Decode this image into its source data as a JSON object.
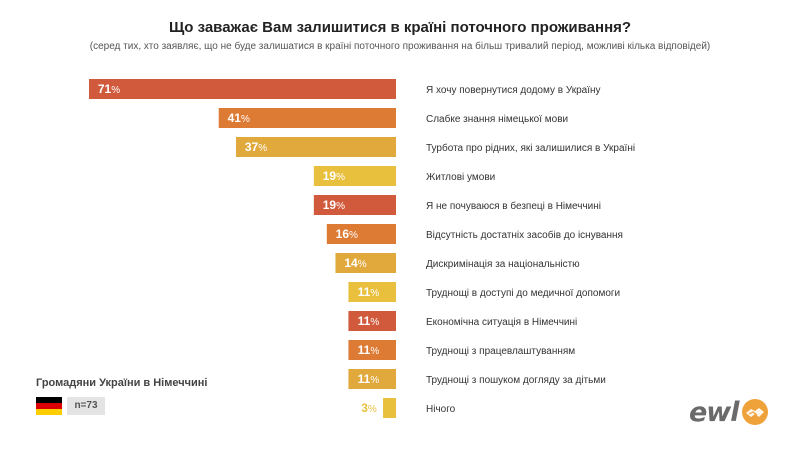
{
  "title": "Що заважає Вам залишитися в країні поточного проживання?",
  "subtitle": "(серед тих, хто заявляє, що не буде залишатися в країні поточного проживання на більш тривалий період, можливі кілька відповідей)",
  "chart_data": {
    "type": "bar",
    "orientation": "horizontal",
    "unit": "%",
    "categories": [
      "Я хочу повернутися додому в Україну",
      "Слабке знання німецької мови",
      "Турбота про рідних, які залишилися в Україні",
      "Житлові умови",
      "Я не почуваюся в безпеці в Німеччині",
      "Відсутність достатніх засобів до існування",
      "Дискримінація за національністю",
      "Труднощі в доступі до медичної допомоги",
      "Економічна ситуація в Німеччині",
      "Труднощі з працевлаштуванням",
      "Труднощі з пошуком догляду за дітьми",
      "Нічого"
    ],
    "values": [
      71,
      41,
      37,
      19,
      19,
      16,
      14,
      11,
      11,
      11,
      11,
      3
    ],
    "colors": [
      "#d15a3c",
      "#dd7a33",
      "#e1a93c",
      "#e9c03e",
      "#d15a3c",
      "#dd7a33",
      "#e1a93c",
      "#e9c03e",
      "#d15a3c",
      "#dd7a33",
      "#e1a93c",
      "#e9c03e"
    ]
  },
  "country_label": "Громадяни України в Німеччині",
  "sample_size": "n=73",
  "flag_colors": [
    "#000000",
    "#dd0000",
    "#ffce00"
  ],
  "logo": {
    "text": "ewl",
    "accent_color": "#f0a23a"
  }
}
